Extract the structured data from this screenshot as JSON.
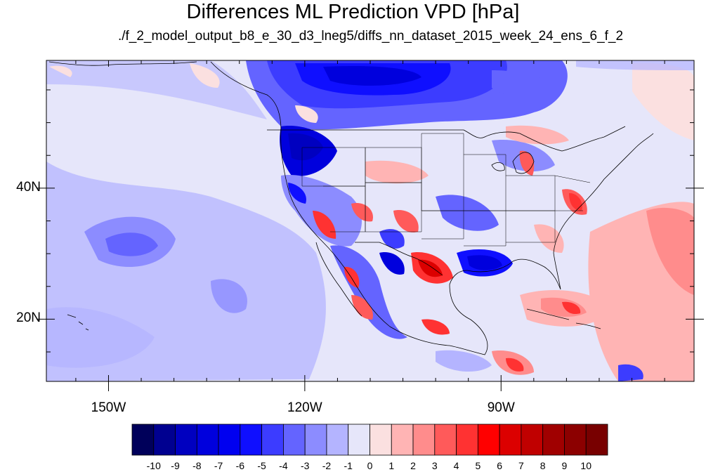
{
  "title": "Differences ML Prediction VPD [hPa]",
  "subtitle": "./f_2_model_output_b8_e_30_d3_lneg5/diffs_nn_dataset_2015_week_24_ens_6_f_2",
  "x_ticks": [
    {
      "label": "150W",
      "lon": -150
    },
    {
      "label": "120W",
      "lon": -120
    },
    {
      "label": "90W",
      "lon": -90
    }
  ],
  "y_ticks": [
    {
      "label": "40N",
      "lat": 40
    },
    {
      "label": "20N",
      "lat": 20
    }
  ],
  "map_extent": {
    "lon_min": -159.5,
    "lon_max": -60.5,
    "lat_min": 10.5,
    "lat_max": 59.5
  },
  "colorbar": {
    "colors": [
      "#00005a",
      "#000090",
      "#0000c0",
      "#0000dd",
      "#0000f0",
      "#0f0fff",
      "#3c3cff",
      "#6464ff",
      "#8c8cff",
      "#b4b4ff",
      "#e6e6fa",
      "#fbe0e0",
      "#ffb4b4",
      "#ff8c8c",
      "#ff5a5a",
      "#ff3232",
      "#ff0000",
      "#dc0000",
      "#c00000",
      "#a00000",
      "#8c0000",
      "#780000"
    ],
    "labels": [
      "-10",
      "-9",
      "-8",
      "-7",
      "-6",
      "-5",
      "-4",
      "-3",
      "-2",
      "-1",
      "0",
      "1",
      "2",
      "3",
      "4",
      "5",
      "6",
      "7",
      "8",
      "9",
      "10"
    ]
  }
}
